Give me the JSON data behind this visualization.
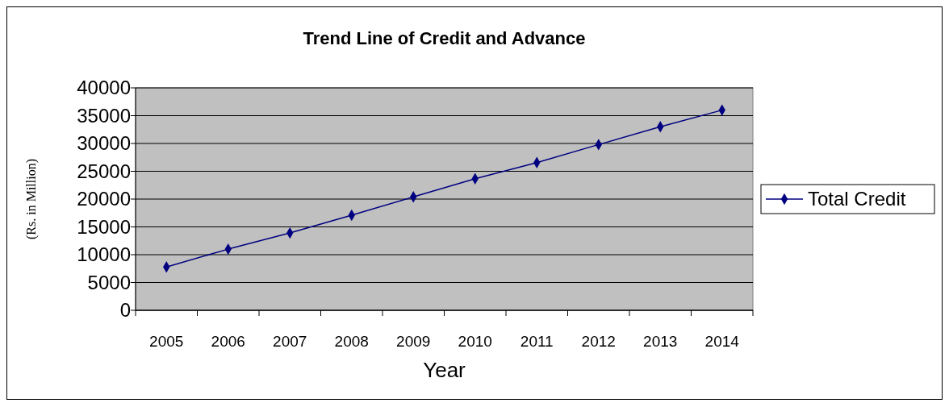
{
  "chart_data": {
    "type": "line",
    "title": "Trend Line of Credit and Advance",
    "xlabel": "Year",
    "ylabel": "(Rs. in Million)",
    "categories": [
      "2005",
      "2006",
      "2007",
      "2008",
      "2009",
      "2010",
      "2011",
      "2012",
      "2013",
      "2014"
    ],
    "series": [
      {
        "name": "Total Credit",
        "color": "#000080",
        "values": [
          7800,
          11000,
          13900,
          17100,
          20400,
          23650,
          26550,
          29800,
          33000,
          36000
        ]
      }
    ],
    "ylim": [
      0,
      40000
    ],
    "yticks": [
      0,
      5000,
      10000,
      15000,
      20000,
      25000,
      30000,
      35000,
      40000
    ],
    "grid": "y",
    "legend": "right",
    "marker": "diamond"
  }
}
